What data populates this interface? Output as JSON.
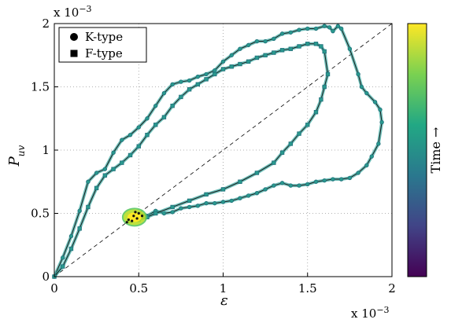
{
  "chart_data": {
    "type": "scatter",
    "title": "",
    "xlabel": "ε",
    "ylabel": "P_uv",
    "x_scale_label": "x 10^-3",
    "y_scale_label": "x 10^-3",
    "xlim": [
      0,
      2
    ],
    "ylim": [
      0,
      2
    ],
    "xticks": [
      "0",
      "0.5",
      "1",
      "1.5",
      "2"
    ],
    "yticks": [
      "0",
      "0.5",
      "1",
      "1.5",
      "2"
    ],
    "grid": true,
    "grid_style": "dotted",
    "legend_position": "top-left",
    "reference_line": {
      "label": "",
      "points": [
        [
          0,
          0
        ],
        [
          2,
          2
        ]
      ],
      "style": "dashed"
    },
    "colorbar": {
      "label": "Time →",
      "colormap": "viridis",
      "position": "right"
    },
    "colors": {
      "line": "#1a1a1a",
      "marker_edge": "#1f6f7a",
      "marker_fill": "#2a9a8e",
      "halo": "#3aa8a0"
    },
    "series": [
      {
        "name": "K-type",
        "marker": "circle",
        "x": [
          0,
          0.05,
          0.1,
          0.15,
          0.2,
          0.25,
          0.3,
          0.35,
          0.4,
          0.45,
          0.5,
          0.55,
          0.6,
          0.65,
          0.7,
          0.75,
          0.8,
          0.85,
          0.9,
          0.95,
          1.0,
          1.05,
          1.1,
          1.15,
          1.2,
          1.25,
          1.3,
          1.35,
          1.4,
          1.45,
          1.5,
          1.55,
          1.6,
          1.63,
          1.65,
          1.68,
          1.7,
          1.75,
          1.8,
          1.82,
          1.85,
          1.9,
          1.93,
          1.94,
          1.92,
          1.88,
          1.85,
          1.8,
          1.75,
          1.7,
          1.65,
          1.6,
          1.55,
          1.5,
          1.45,
          1.4,
          1.35,
          1.3,
          1.25,
          1.2,
          1.15,
          1.1,
          1.05,
          1.0,
          0.95,
          0.9,
          0.85,
          0.8,
          0.75,
          0.7,
          0.65,
          0.6,
          0.55,
          0.5
        ],
        "y": [
          0,
          0.15,
          0.32,
          0.52,
          0.75,
          0.82,
          0.85,
          0.98,
          1.08,
          1.12,
          1.18,
          1.25,
          1.35,
          1.45,
          1.52,
          1.54,
          1.55,
          1.58,
          1.6,
          1.63,
          1.7,
          1.75,
          1.8,
          1.83,
          1.86,
          1.86,
          1.88,
          1.92,
          1.93,
          1.95,
          1.96,
          1.96,
          1.98,
          1.97,
          1.94,
          1.98,
          1.96,
          1.8,
          1.6,
          1.5,
          1.45,
          1.38,
          1.32,
          1.22,
          1.05,
          0.95,
          0.88,
          0.82,
          0.78,
          0.77,
          0.77,
          0.76,
          0.75,
          0.73,
          0.72,
          0.72,
          0.74,
          0.72,
          0.69,
          0.66,
          0.64,
          0.62,
          0.6,
          0.59,
          0.58,
          0.58,
          0.56,
          0.55,
          0.54,
          0.51,
          0.5,
          0.52,
          0.48,
          0.5
        ]
      },
      {
        "name": "F-type",
        "marker": "square",
        "x": [
          0,
          0.05,
          0.1,
          0.15,
          0.2,
          0.25,
          0.3,
          0.35,
          0.4,
          0.45,
          0.5,
          0.55,
          0.6,
          0.65,
          0.7,
          0.75,
          0.8,
          0.85,
          0.9,
          0.95,
          1.0,
          1.05,
          1.1,
          1.15,
          1.2,
          1.25,
          1.3,
          1.35,
          1.4,
          1.45,
          1.5,
          1.55,
          1.58,
          1.6,
          1.62,
          1.6,
          1.58,
          1.55,
          1.5,
          1.45,
          1.4,
          1.35,
          1.3,
          1.2,
          1.1,
          1.0,
          0.9,
          0.8,
          0.7,
          0.6,
          0.55,
          0.5,
          0.45
        ],
        "y": [
          0,
          0.08,
          0.22,
          0.38,
          0.55,
          0.7,
          0.8,
          0.85,
          0.9,
          0.96,
          1.03,
          1.12,
          1.2,
          1.26,
          1.35,
          1.42,
          1.48,
          1.52,
          1.56,
          1.6,
          1.64,
          1.66,
          1.68,
          1.7,
          1.73,
          1.75,
          1.77,
          1.79,
          1.8,
          1.82,
          1.84,
          1.84,
          1.82,
          1.78,
          1.6,
          1.5,
          1.4,
          1.3,
          1.2,
          1.13,
          1.05,
          0.98,
          0.9,
          0.82,
          0.75,
          0.69,
          0.65,
          0.6,
          0.55,
          0.5,
          0.47,
          0.45,
          0.44
        ]
      }
    ],
    "cluster_near": {
      "x": [
        0.44,
        0.47,
        0.5,
        0.46,
        0.49,
        0.43,
        0.52,
        0.48
      ],
      "y": [
        0.45,
        0.48,
        0.5,
        0.44,
        0.46,
        0.43,
        0.48,
        0.51
      ]
    }
  }
}
